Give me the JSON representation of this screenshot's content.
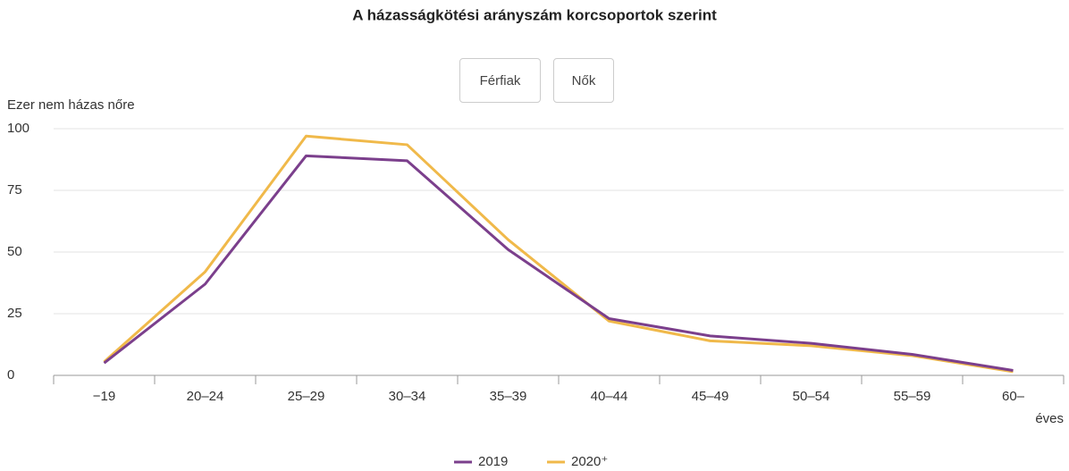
{
  "chart_data": {
    "type": "line",
    "title": "A házasságkötési arányszám korcsoportok szerint",
    "buttons": [
      "Férfiak",
      "Nők"
    ],
    "y_label": "Ezer nem házas nőre",
    "x_label": "éves",
    "categories": [
      "−19",
      "20–24",
      "25–29",
      "30–34",
      "35–39",
      "40–44",
      "45–49",
      "50–54",
      "55–59",
      "60–"
    ],
    "series": [
      {
        "name": "2019",
        "color": "#7b3f8c",
        "values": [
          5,
          37,
          89,
          87,
          51,
          23,
          16,
          13,
          8.5,
          2
        ]
      },
      {
        "name": "2020⁺",
        "color": "#f0b94a",
        "values": [
          5.5,
          42,
          97,
          93.5,
          55,
          22,
          14,
          12,
          8,
          1.5
        ]
      }
    ],
    "ylim": [
      0,
      100
    ],
    "yticks": [
      0,
      25,
      50,
      75,
      100
    ],
    "grid": true,
    "legend": "bottom"
  }
}
